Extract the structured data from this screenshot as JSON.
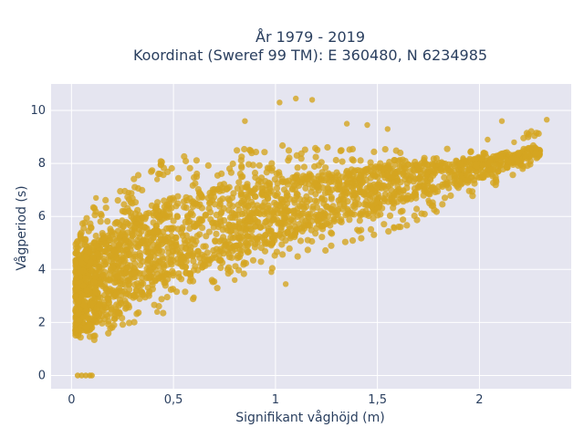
{
  "chart_data": {
    "type": "scatter",
    "title_line1": "År 1979 - 2019",
    "title_line2": "Koordinat (Sweref 99 TM): E 360480, N 6234985",
    "xlabel": "Signifikant våghöjd (m)",
    "ylabel": "Vågperiod (s)",
    "xlim": [
      -0.1,
      2.45
    ],
    "ylim": [
      -0.5,
      11
    ],
    "x_ticks": [
      0,
      0.5,
      1,
      1.5,
      2
    ],
    "x_tick_labels": [
      "0",
      "0,5",
      "1",
      "1,5",
      "2"
    ],
    "y_ticks": [
      0,
      2,
      4,
      6,
      8,
      10
    ],
    "y_tick_labels": [
      "0",
      "2",
      "4",
      "6",
      "8",
      "10"
    ],
    "grid": true,
    "marker_color": "#D4A520",
    "plot_bg": "#E5E5F0",
    "envelope": {
      "description": "dense cloud of wave period vs significant wave height",
      "lower_bound": [
        [
          0.02,
          1.2
        ],
        [
          0.1,
          1.3
        ],
        [
          0.2,
          1.6
        ],
        [
          0.3,
          1.9
        ],
        [
          0.5,
          2.5
        ],
        [
          0.7,
          3.1
        ],
        [
          1.0,
          4.0
        ],
        [
          1.3,
          4.8
        ],
        [
          1.6,
          5.5
        ],
        [
          2.0,
          6.8
        ],
        [
          2.3,
          8.2
        ]
      ],
      "upper_bound": [
        [
          0.02,
          5.3
        ],
        [
          0.1,
          6.3
        ],
        [
          0.2,
          7.0
        ],
        [
          0.3,
          7.6
        ],
        [
          0.5,
          8.4
        ],
        [
          0.7,
          8.7
        ],
        [
          1.0,
          8.8
        ],
        [
          1.3,
          8.7
        ],
        [
          1.6,
          8.5
        ],
        [
          2.0,
          8.6
        ],
        [
          2.3,
          9.4
        ]
      ],
      "core_lower": [
        [
          0.03,
          1.5
        ],
        [
          0.2,
          2.2
        ],
        [
          0.5,
          3.6
        ],
        [
          1.0,
          5.0
        ],
        [
          1.5,
          6.2
        ],
        [
          2.0,
          7.4
        ],
        [
          2.25,
          8.2
        ]
      ],
      "core_upper": [
        [
          0.03,
          4.5
        ],
        [
          0.2,
          5.8
        ],
        [
          0.5,
          6.8
        ],
        [
          1.0,
          7.4
        ],
        [
          1.5,
          7.9
        ],
        [
          2.0,
          8.2
        ],
        [
          2.25,
          8.6
        ]
      ]
    },
    "zero_points": [
      [
        0.03,
        0
      ],
      [
        0.05,
        0
      ],
      [
        0.07,
        0
      ],
      [
        0.09,
        0
      ],
      [
        0.1,
        0
      ]
    ],
    "outliers": [
      [
        1.02,
        10.3
      ],
      [
        1.1,
        10.45
      ],
      [
        1.18,
        10.4
      ],
      [
        0.85,
        9.6
      ],
      [
        1.35,
        9.5
      ],
      [
        1.45,
        9.45
      ],
      [
        1.55,
        9.3
      ],
      [
        1.4,
        5.5
      ],
      [
        1.58,
        5.6
      ],
      [
        1.75,
        6.6
      ],
      [
        2.11,
        9.6
      ],
      [
        2.33,
        9.65
      ],
      [
        0.85,
        4.9
      ],
      [
        0.98,
        4.9
      ],
      [
        2.04,
        8.9
      ],
      [
        2.17,
        8.8
      ],
      [
        1.72,
        7.9
      ],
      [
        1.92,
        8.2
      ],
      [
        0.28,
        6.9
      ],
      [
        0.42,
        7.4
      ],
      [
        0.05,
        5.1
      ],
      [
        0.12,
        6.7
      ],
      [
        0.42,
        2.4
      ],
      [
        0.6,
        2.95
      ],
      [
        0.8,
        3.6
      ],
      [
        1.05,
        3.45
      ],
      [
        0.98,
        3.9
      ],
      [
        1.62,
        6.7
      ]
    ]
  }
}
